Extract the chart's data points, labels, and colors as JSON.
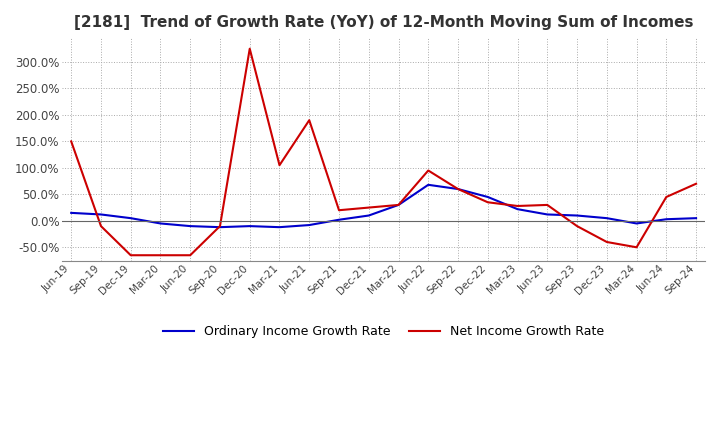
{
  "title": "[2181]  Trend of Growth Rate (YoY) of 12-Month Moving Sum of Incomes",
  "title_fontsize": 11,
  "ylim": [
    -75,
    345
  ],
  "yticks": [
    -50,
    0,
    50,
    100,
    150,
    200,
    250,
    300
  ],
  "background_color": "#ffffff",
  "grid_color": "#aaaaaa",
  "ordinary_color": "#0000cc",
  "net_color": "#cc0000",
  "legend_ordinary": "Ordinary Income Growth Rate",
  "legend_net": "Net Income Growth Rate",
  "x_labels": [
    "Jun-19",
    "Sep-19",
    "Dec-19",
    "Mar-20",
    "Jun-20",
    "Sep-20",
    "Dec-20",
    "Mar-21",
    "Jun-21",
    "Sep-21",
    "Dec-21",
    "Mar-22",
    "Jun-22",
    "Sep-22",
    "Dec-22",
    "Mar-23",
    "Jun-23",
    "Sep-23",
    "Dec-23",
    "Mar-24",
    "Jun-24",
    "Sep-24"
  ],
  "ordinary_income_growth": [
    15,
    12,
    5,
    -5,
    -10,
    -12,
    -10,
    -12,
    -8,
    2,
    10,
    30,
    68,
    60,
    45,
    22,
    12,
    10,
    5,
    -5,
    3,
    5
  ],
  "net_income_growth": [
    150,
    -10,
    -65,
    -65,
    -65,
    -10,
    325,
    105,
    190,
    20,
    25,
    30,
    95,
    60,
    35,
    28,
    30,
    -10,
    -40,
    -50,
    45,
    70
  ]
}
